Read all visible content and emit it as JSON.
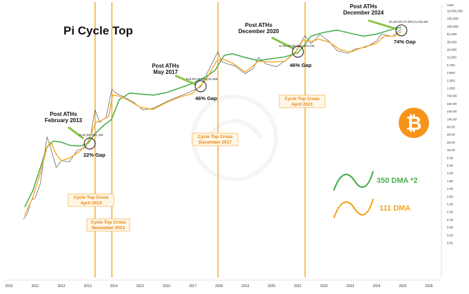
{
  "chart_data": {
    "type": "line",
    "title": "Pi Cycle Top",
    "y_scale": "log",
    "y_unit": "USD",
    "y_tick_labels": [
      "10,000,000",
      "185,000",
      "105,000",
      "61,000",
      "35,000",
      "20,000",
      "11,500",
      "6,700",
      "3,900",
      "2,300",
      "1,300",
      "740.00",
      "420.00",
      "240.00",
      "140.00",
      "80.00",
      "46.00",
      "26.00",
      "15.00",
      "9.00",
      "5.00",
      "3.00",
      "1.80",
      "1.00",
      "0.60",
      "0.30",
      "0.20",
      "0.10",
      "0.06",
      "0.03",
      "0.01"
    ],
    "x_tick_labels": [
      "2010",
      "2011",
      "2012",
      "2013",
      "2014",
      "2015",
      "2016",
      "2017",
      "2018",
      "2019",
      "2020",
      "2021",
      "2022",
      "2023",
      "2024",
      "2025",
      "2026"
    ],
    "series": [
      {
        "name": "350 DMA *2",
        "color": "#4caf50",
        "x": [
          2010.6,
          2010.9,
          2011.2,
          2011.45,
          2011.7,
          2012.0,
          2012.3,
          2012.7,
          2013.0,
          2013.3,
          2013.6,
          2013.9,
          2014.2,
          2014.6,
          2015.0,
          2015.5,
          2016.0,
          2016.5,
          2017.0,
          2017.5,
          2017.85,
          2018.0,
          2018.2,
          2018.5,
          2019.0,
          2019.5,
          2020.0,
          2020.5,
          2021.0,
          2021.25,
          2021.5,
          2022.0,
          2022.5,
          2023.0,
          2023.5,
          2024.0,
          2024.5,
          2024.95
        ],
        "y": [
          0.15,
          0.5,
          3,
          14,
          22,
          20,
          16,
          15,
          18,
          40,
          70,
          110,
          500,
          820,
          760,
          700,
          850,
          1200,
          1700,
          2800,
          4500,
          7500,
          14000,
          16000,
          12000,
          9500,
          11000,
          12500,
          17000,
          30000,
          60000,
          80000,
          95000,
          75000,
          60000,
          70000,
          95000,
          120000
        ]
      },
      {
        "name": "111 DMA",
        "color": "#f5a623",
        "x": [
          2010.6,
          2010.9,
          2011.2,
          2011.45,
          2011.6,
          2011.8,
          2012.0,
          2012.3,
          2012.7,
          2013.0,
          2013.3,
          2013.5,
          2013.8,
          2013.95,
          2014.2,
          2014.6,
          2015.0,
          2015.5,
          2016.0,
          2016.5,
          2017.0,
          2017.5,
          2017.9,
          2018.1,
          2018.5,
          2019.0,
          2019.5,
          2020.0,
          2020.5,
          2020.9,
          2021.2,
          2021.5,
          2021.8,
          2022.2,
          2022.6,
          2023.0,
          2023.5,
          2024.0,
          2024.3,
          2024.7,
          2024.95
        ],
        "y": [
          0.08,
          0.3,
          2,
          14,
          20,
          8,
          5,
          6,
          10,
          20,
          90,
          100,
          140,
          700,
          650,
          450,
          280,
          240,
          400,
          600,
          800,
          2200,
          9000,
          11000,
          8000,
          4000,
          9000,
          8500,
          9000,
          17000,
          45000,
          40000,
          48000,
          38000,
          22000,
          18000,
          26000,
          35000,
          60000,
          60000,
          85000
        ]
      },
      {
        "name": "price",
        "color": "#555555",
        "x": [
          2010.55,
          2010.7,
          2010.85,
          2011.0,
          2011.2,
          2011.35,
          2011.45,
          2011.6,
          2011.8,
          2012.0,
          2012.3,
          2012.6,
          2012.9,
          2013.1,
          2013.28,
          2013.45,
          2013.7,
          2013.92,
          2014.1,
          2014.4,
          2014.8,
          2015.1,
          2015.5,
          2016.0,
          2016.5,
          2017.0,
          2017.3,
          2017.6,
          2017.96,
          2018.1,
          2018.3,
          2018.6,
          2019.0,
          2019.3,
          2019.5,
          2019.8,
          2020.2,
          2020.5,
          2020.9,
          2021.28,
          2021.5,
          2021.85,
          2022.2,
          2022.5,
          2022.9,
          2023.2,
          2023.6,
          2024.0,
          2024.2,
          2024.6,
          2024.95
        ],
        "y": [
          0.06,
          0.09,
          0.25,
          0.3,
          0.9,
          8,
          30,
          12,
          3,
          5,
          4.5,
          11,
          13,
          30,
          230,
          90,
          130,
          1100,
          800,
          600,
          380,
          230,
          260,
          430,
          650,
          980,
          1300,
          4500,
          19000,
          9000,
          7500,
          6400,
          3500,
          5200,
          12000,
          7300,
          6000,
          9200,
          18000,
          63000,
          34000,
          68000,
          40000,
          20000,
          16500,
          23000,
          26000,
          42000,
          71000,
          58000,
          104000
        ]
      }
    ],
    "annotations": [
      {
        "title": "Post ATHs February 2013",
        "value": "6.34 (22.76%) 434",
        "gap": "22% Gap",
        "cycle_top_cross": "Cycle Top Cross April 2013"
      },
      {
        "title": "Post ATHs May 2017",
        "value": "519.38 (46.34%) 51,638",
        "gap": "46% Gap",
        "cycle_top_cross": "Cycle Top Cross December 2017"
      },
      {
        "title": "Post ATHs December 2020",
        "value": "6,724.76 (46.34%) 672,476",
        "gap": "46% Gap",
        "cycle_top_cross": "Cycle Top Cross April 2021"
      },
      {
        "title": "Post ATHs December 2024",
        "value": "54,104.46 (74.46%) 5,410,446",
        "gap": "74% Gap"
      }
    ],
    "extra_crosses": [
      "Cycle Top Cross November 2013"
    ],
    "crosses_x": [
      2013.28,
      2013.92,
      2017.96,
      2021.28
    ],
    "legend": {
      "placement": "right",
      "items": [
        {
          "label": "350 DMA *2",
          "color": "#4caf50"
        },
        {
          "label": "111 DMA",
          "color": "#f5a623"
        }
      ]
    },
    "grid": false,
    "colors": {
      "ma350": "#4caf50",
      "ma111": "#f5a623",
      "cross_line": "#f5a623",
      "cross_text": "#e8820c",
      "bitcoin": "#f7931a"
    }
  }
}
